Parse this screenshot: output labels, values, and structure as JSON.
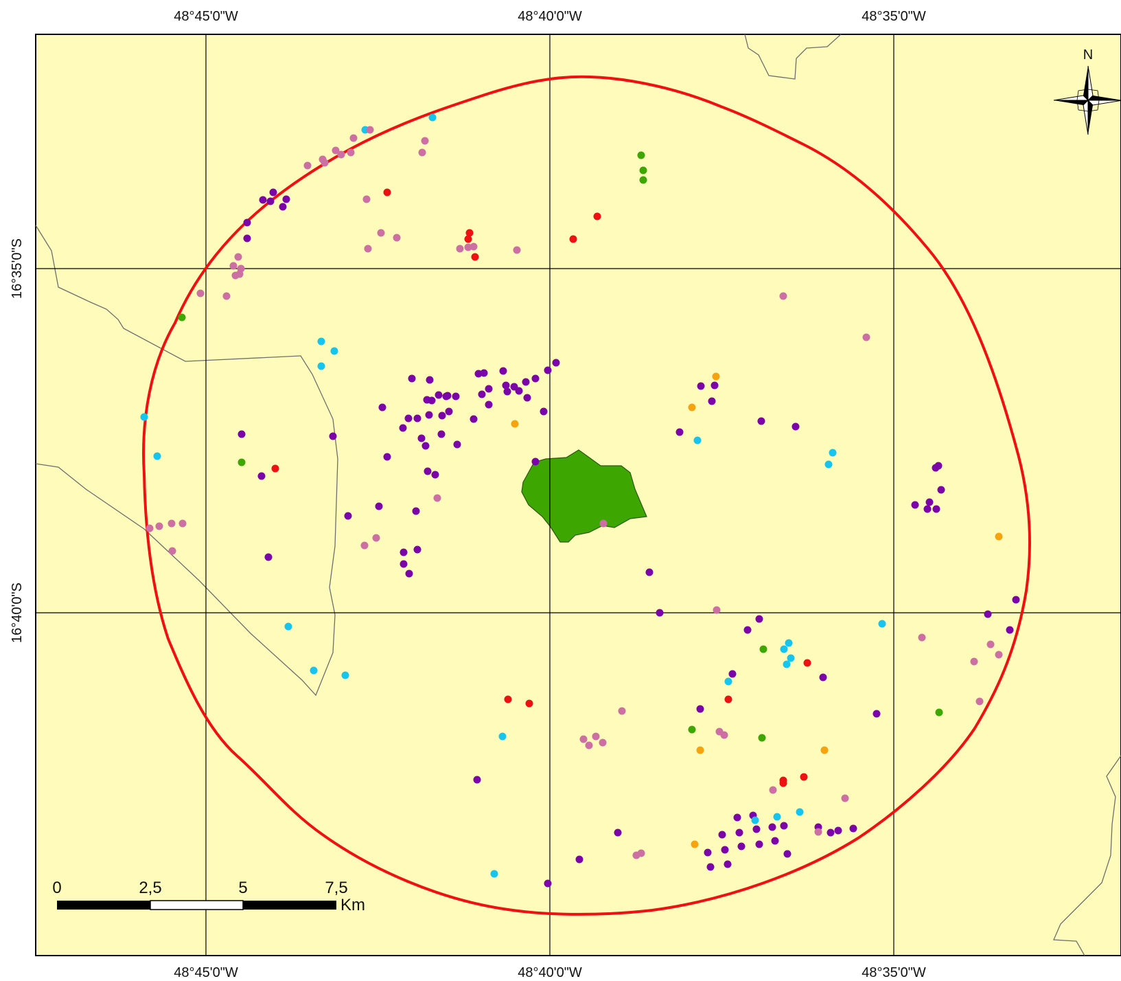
{
  "map": {
    "graticule": {
      "lon_labels": [
        "48°45'0\"W",
        "48°40'0\"W",
        "48°35'0\"W"
      ],
      "lat_labels": [
        "16°35'0\"S",
        "16°40'0\"S"
      ]
    },
    "north_arrow_label": "N",
    "scale_bar": {
      "ticks": [
        "0",
        "2,5",
        "5",
        "7,5"
      ],
      "unit": "Km"
    },
    "colors": {
      "background": "#fefbbb",
      "buffer_ring": "#ee1111",
      "polygon": "#3da600",
      "purple": "#7b04a8",
      "pink": "#cc6fa3",
      "cyan": "#17c4ee",
      "red": "#ee1111",
      "green": "#3da600",
      "orange": "#f5a40f"
    },
    "points": [
      {
        "c": "cyan",
        "x": 630,
        "y": 171
      },
      {
        "c": "cyan",
        "x": 532,
        "y": 189
      },
      {
        "c": "pink",
        "x": 539,
        "y": 189
      },
      {
        "c": "pink",
        "x": 515,
        "y": 201
      },
      {
        "c": "pink",
        "x": 619,
        "y": 205
      },
      {
        "c": "pink",
        "x": 615,
        "y": 222
      },
      {
        "c": "pink",
        "x": 489,
        "y": 219
      },
      {
        "c": "pink",
        "x": 497,
        "y": 225
      },
      {
        "c": "pink",
        "x": 511,
        "y": 222
      },
      {
        "c": "pink",
        "x": 470,
        "y": 232
      },
      {
        "c": "pink",
        "x": 473,
        "y": 237
      },
      {
        "c": "pink",
        "x": 448,
        "y": 241
      },
      {
        "c": "green",
        "x": 934,
        "y": 226
      },
      {
        "c": "green",
        "x": 937,
        "y": 248
      },
      {
        "c": "green",
        "x": 937,
        "y": 262
      },
      {
        "c": "red",
        "x": 564,
        "y": 280
      },
      {
        "c": "pink",
        "x": 534,
        "y": 290
      },
      {
        "c": "purple",
        "x": 398,
        "y": 280
      },
      {
        "c": "purple",
        "x": 383,
        "y": 291
      },
      {
        "c": "purple",
        "x": 394,
        "y": 293
      },
      {
        "c": "purple",
        "x": 417,
        "y": 290
      },
      {
        "c": "purple",
        "x": 412,
        "y": 301
      },
      {
        "c": "purple",
        "x": 360,
        "y": 324
      },
      {
        "c": "purple",
        "x": 360,
        "y": 347
      },
      {
        "c": "red",
        "x": 870,
        "y": 315
      },
      {
        "c": "red",
        "x": 835,
        "y": 348
      },
      {
        "c": "pink",
        "x": 555,
        "y": 339
      },
      {
        "c": "pink",
        "x": 578,
        "y": 346
      },
      {
        "c": "pink",
        "x": 536,
        "y": 362
      },
      {
        "c": "red",
        "x": 684,
        "y": 339
      },
      {
        "c": "red",
        "x": 682,
        "y": 348
      },
      {
        "c": "pink",
        "x": 670,
        "y": 362
      },
      {
        "c": "pink",
        "x": 682,
        "y": 360
      },
      {
        "c": "pink",
        "x": 690,
        "y": 359
      },
      {
        "c": "red",
        "x": 692,
        "y": 374
      },
      {
        "c": "pink",
        "x": 753,
        "y": 364
      },
      {
        "c": "pink",
        "x": 347,
        "y": 374
      },
      {
        "c": "pink",
        "x": 340,
        "y": 387
      },
      {
        "c": "pink",
        "x": 351,
        "y": 391
      },
      {
        "c": "pink",
        "x": 343,
        "y": 401
      },
      {
        "c": "pink",
        "x": 349,
        "y": 399
      },
      {
        "c": "pink",
        "x": 292,
        "y": 427
      },
      {
        "c": "pink",
        "x": 330,
        "y": 431
      },
      {
        "c": "green",
        "x": 265,
        "y": 462
      },
      {
        "c": "pink",
        "x": 1141,
        "y": 431
      },
      {
        "c": "pink",
        "x": 1262,
        "y": 491
      },
      {
        "c": "cyan",
        "x": 468,
        "y": 497
      },
      {
        "c": "cyan",
        "x": 487,
        "y": 511
      },
      {
        "c": "cyan",
        "x": 468,
        "y": 533
      },
      {
        "c": "purple",
        "x": 810,
        "y": 528
      },
      {
        "c": "purple",
        "x": 798,
        "y": 539
      },
      {
        "c": "purple",
        "x": 733,
        "y": 540
      },
      {
        "c": "purple",
        "x": 697,
        "y": 544
      },
      {
        "c": "purple",
        "x": 705,
        "y": 543
      },
      {
        "c": "purple",
        "x": 600,
        "y": 551
      },
      {
        "c": "purple",
        "x": 626,
        "y": 553
      },
      {
        "c": "purple",
        "x": 712,
        "y": 566
      },
      {
        "c": "purple",
        "x": 737,
        "y": 561
      },
      {
        "c": "purple",
        "x": 749,
        "y": 563
      },
      {
        "c": "purple",
        "x": 756,
        "y": 569
      },
      {
        "c": "purple",
        "x": 766,
        "y": 556
      },
      {
        "c": "purple",
        "x": 780,
        "y": 551
      },
      {
        "c": "purple",
        "x": 739,
        "y": 570
      },
      {
        "c": "purple",
        "x": 702,
        "y": 574
      },
      {
        "c": "purple",
        "x": 768,
        "y": 579
      },
      {
        "c": "purple",
        "x": 712,
        "y": 589
      },
      {
        "c": "purple",
        "x": 639,
        "y": 575
      },
      {
        "c": "purple",
        "x": 650,
        "y": 577
      },
      {
        "c": "purple",
        "x": 664,
        "y": 577
      },
      {
        "c": "purple",
        "x": 622,
        "y": 582
      },
      {
        "c": "purple",
        "x": 629,
        "y": 583
      },
      {
        "c": "purple",
        "x": 652,
        "y": 576
      },
      {
        "c": "purple",
        "x": 557,
        "y": 593
      },
      {
        "c": "purple",
        "x": 595,
        "y": 609
      },
      {
        "c": "purple",
        "x": 608,
        "y": 609
      },
      {
        "c": "purple",
        "x": 625,
        "y": 604
      },
      {
        "c": "purple",
        "x": 644,
        "y": 605
      },
      {
        "c": "purple",
        "x": 654,
        "y": 599
      },
      {
        "c": "purple",
        "x": 690,
        "y": 610
      },
      {
        "c": "purple",
        "x": 587,
        "y": 623
      },
      {
        "c": "purple",
        "x": 792,
        "y": 599
      },
      {
        "c": "orange",
        "x": 1043,
        "y": 548
      },
      {
        "c": "orange",
        "x": 1008,
        "y": 593
      },
      {
        "c": "orange",
        "x": 750,
        "y": 617
      },
      {
        "c": "purple",
        "x": 1021,
        "y": 562
      },
      {
        "c": "purple",
        "x": 1041,
        "y": 561
      },
      {
        "c": "purple",
        "x": 1037,
        "y": 584
      },
      {
        "c": "purple",
        "x": 1109,
        "y": 613
      },
      {
        "c": "purple",
        "x": 1159,
        "y": 621
      },
      {
        "c": "purple",
        "x": 990,
        "y": 629
      },
      {
        "c": "cyan",
        "x": 1016,
        "y": 641
      },
      {
        "c": "cyan",
        "x": 210,
        "y": 607
      },
      {
        "c": "cyan",
        "x": 229,
        "y": 664
      },
      {
        "c": "purple",
        "x": 352,
        "y": 632
      },
      {
        "c": "purple",
        "x": 485,
        "y": 635
      },
      {
        "c": "purple",
        "x": 614,
        "y": 638
      },
      {
        "c": "purple",
        "x": 643,
        "y": 632
      },
      {
        "c": "purple",
        "x": 620,
        "y": 649
      },
      {
        "c": "purple",
        "x": 666,
        "y": 647
      },
      {
        "c": "purple",
        "x": 564,
        "y": 665
      },
      {
        "c": "purple",
        "x": 780,
        "y": 672
      },
      {
        "c": "green",
        "x": 352,
        "y": 673
      },
      {
        "c": "red",
        "x": 401,
        "y": 682
      },
      {
        "c": "purple",
        "x": 381,
        "y": 693
      },
      {
        "c": "purple",
        "x": 623,
        "y": 686
      },
      {
        "c": "purple",
        "x": 634,
        "y": 691
      },
      {
        "c": "pink",
        "x": 637,
        "y": 725
      },
      {
        "c": "cyan",
        "x": 1213,
        "y": 659
      },
      {
        "c": "cyan",
        "x": 1207,
        "y": 676
      },
      {
        "c": "purple",
        "x": 1367,
        "y": 678
      },
      {
        "c": "purple",
        "x": 1363,
        "y": 681
      },
      {
        "c": "purple",
        "x": 1371,
        "y": 713
      },
      {
        "c": "purple",
        "x": 1354,
        "y": 731
      },
      {
        "c": "purple",
        "x": 1333,
        "y": 735
      },
      {
        "c": "purple",
        "x": 1351,
        "y": 741
      },
      {
        "c": "purple",
        "x": 1364,
        "y": 741
      },
      {
        "c": "purple",
        "x": 507,
        "y": 751
      },
      {
        "c": "purple",
        "x": 552,
        "y": 737
      },
      {
        "c": "purple",
        "x": 606,
        "y": 744
      },
      {
        "c": "pink",
        "x": 879,
        "y": 762
      },
      {
        "c": "pink",
        "x": 218,
        "y": 769
      },
      {
        "c": "pink",
        "x": 232,
        "y": 766
      },
      {
        "c": "pink",
        "x": 250,
        "y": 762
      },
      {
        "c": "pink",
        "x": 266,
        "y": 762
      },
      {
        "c": "pink",
        "x": 251,
        "y": 802
      },
      {
        "c": "pink",
        "x": 548,
        "y": 783
      },
      {
        "c": "pink",
        "x": 531,
        "y": 794
      },
      {
        "c": "purple",
        "x": 588,
        "y": 804
      },
      {
        "c": "purple",
        "x": 608,
        "y": 800
      },
      {
        "c": "purple",
        "x": 391,
        "y": 811
      },
      {
        "c": "purple",
        "x": 588,
        "y": 821
      },
      {
        "c": "purple",
        "x": 596,
        "y": 835
      },
      {
        "c": "orange",
        "x": 1455,
        "y": 781
      },
      {
        "c": "purple",
        "x": 946,
        "y": 833
      },
      {
        "c": "purple",
        "x": 961,
        "y": 892
      },
      {
        "c": "purple",
        "x": 1480,
        "y": 873
      },
      {
        "c": "purple",
        "x": 1439,
        "y": 894
      },
      {
        "c": "purple",
        "x": 1471,
        "y": 917
      },
      {
        "c": "pink",
        "x": 1044,
        "y": 888
      },
      {
        "c": "purple",
        "x": 1106,
        "y": 901
      },
      {
        "c": "purple",
        "x": 1089,
        "y": 917
      },
      {
        "c": "cyan",
        "x": 1285,
        "y": 908
      },
      {
        "c": "pink",
        "x": 1343,
        "y": 928
      },
      {
        "c": "pink",
        "x": 1443,
        "y": 938
      },
      {
        "c": "pink",
        "x": 1455,
        "y": 953
      },
      {
        "c": "pink",
        "x": 1419,
        "y": 963
      },
      {
        "c": "cyan",
        "x": 420,
        "y": 912
      },
      {
        "c": "cyan",
        "x": 1149,
        "y": 936
      },
      {
        "c": "cyan",
        "x": 1142,
        "y": 945
      },
      {
        "c": "cyan",
        "x": 1152,
        "y": 958
      },
      {
        "c": "cyan",
        "x": 1146,
        "y": 967
      },
      {
        "c": "green",
        "x": 1112,
        "y": 945
      },
      {
        "c": "red",
        "x": 1176,
        "y": 965
      },
      {
        "c": "purple",
        "x": 1067,
        "y": 981
      },
      {
        "c": "cyan",
        "x": 1061,
        "y": 992
      },
      {
        "c": "purple",
        "x": 1199,
        "y": 986
      },
      {
        "c": "cyan",
        "x": 457,
        "y": 976
      },
      {
        "c": "cyan",
        "x": 503,
        "y": 983
      },
      {
        "c": "red",
        "x": 740,
        "y": 1018
      },
      {
        "c": "red",
        "x": 771,
        "y": 1024
      },
      {
        "c": "red",
        "x": 1061,
        "y": 1018
      },
      {
        "c": "purple",
        "x": 1020,
        "y": 1032
      },
      {
        "c": "pink",
        "x": 906,
        "y": 1035
      },
      {
        "c": "purple",
        "x": 1277,
        "y": 1039
      },
      {
        "c": "green",
        "x": 1368,
        "y": 1037
      },
      {
        "c": "pink",
        "x": 1427,
        "y": 1021
      },
      {
        "c": "green",
        "x": 1008,
        "y": 1062
      },
      {
        "c": "pink",
        "x": 1048,
        "y": 1065
      },
      {
        "c": "pink",
        "x": 1055,
        "y": 1070
      },
      {
        "c": "green",
        "x": 1110,
        "y": 1074
      },
      {
        "c": "cyan",
        "x": 732,
        "y": 1072
      },
      {
        "c": "pink",
        "x": 850,
        "y": 1076
      },
      {
        "c": "pink",
        "x": 868,
        "y": 1072
      },
      {
        "c": "pink",
        "x": 858,
        "y": 1085
      },
      {
        "c": "pink",
        "x": 878,
        "y": 1081
      },
      {
        "c": "orange",
        "x": 1020,
        "y": 1092
      },
      {
        "c": "orange",
        "x": 1201,
        "y": 1092
      },
      {
        "c": "red",
        "x": 1171,
        "y": 1131
      },
      {
        "c": "red",
        "x": 1141,
        "y": 1136
      },
      {
        "c": "red",
        "x": 1141,
        "y": 1140
      },
      {
        "c": "pink",
        "x": 1126,
        "y": 1150
      },
      {
        "c": "pink",
        "x": 1231,
        "y": 1162
      },
      {
        "c": "purple",
        "x": 695,
        "y": 1135
      },
      {
        "c": "cyan",
        "x": 1165,
        "y": 1182
      },
      {
        "c": "purple",
        "x": 1074,
        "y": 1190
      },
      {
        "c": "purple",
        "x": 1097,
        "y": 1187
      },
      {
        "c": "cyan",
        "x": 1100,
        "y": 1194
      },
      {
        "c": "cyan",
        "x": 1132,
        "y": 1189
      },
      {
        "c": "purple",
        "x": 1102,
        "y": 1207
      },
      {
        "c": "purple",
        "x": 1125,
        "y": 1204
      },
      {
        "c": "purple",
        "x": 1142,
        "y": 1202
      },
      {
        "c": "purple",
        "x": 1192,
        "y": 1204
      },
      {
        "c": "pink",
        "x": 1192,
        "y": 1211
      },
      {
        "c": "purple",
        "x": 1210,
        "y": 1212
      },
      {
        "c": "purple",
        "x": 1221,
        "y": 1209
      },
      {
        "c": "purple",
        "x": 1243,
        "y": 1206
      },
      {
        "c": "purple",
        "x": 1052,
        "y": 1215
      },
      {
        "c": "purple",
        "x": 1077,
        "y": 1212
      },
      {
        "c": "purple",
        "x": 1901,
        "y": 1
      },
      {
        "c": "purple",
        "x": 900,
        "y": 1212
      },
      {
        "c": "pink",
        "x": 927,
        "y": 1245
      },
      {
        "c": "pink",
        "x": 934,
        "y": 1242
      },
      {
        "c": "orange",
        "x": 1012,
        "y": 1229
      },
      {
        "c": "purple",
        "x": 1031,
        "y": 1241
      },
      {
        "c": "purple",
        "x": 1056,
        "y": 1237
      },
      {
        "c": "purple",
        "x": 1080,
        "y": 1232
      },
      {
        "c": "purple",
        "x": 1106,
        "y": 1229
      },
      {
        "c": "purple",
        "x": 1129,
        "y": 1224
      },
      {
        "c": "purple",
        "x": 1147,
        "y": 1243
      },
      {
        "c": "purple",
        "x": 844,
        "y": 1251
      },
      {
        "c": "purple",
        "x": 1035,
        "y": 1262
      },
      {
        "c": "purple",
        "x": 1060,
        "y": 1258
      },
      {
        "c": "cyan",
        "x": 720,
        "y": 1272
      },
      {
        "c": "purple",
        "x": 798,
        "y": 1286
      }
    ]
  }
}
